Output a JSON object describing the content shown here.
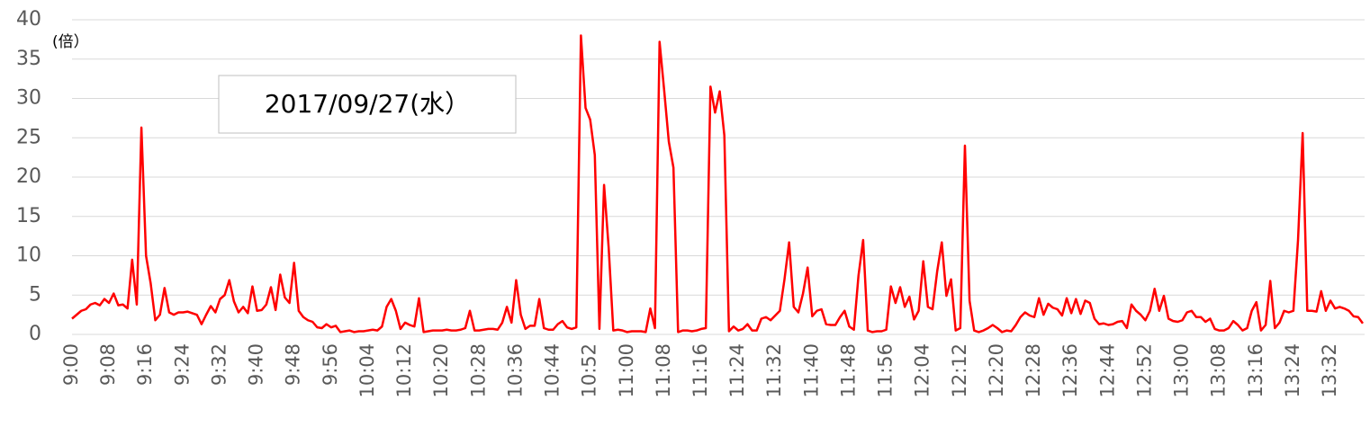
{
  "chart_data": {
    "type": "line",
    "unit_label": "(倍）",
    "annotation": "2017/09/27(水）",
    "categories": [
      "9:00",
      null,
      null,
      null,
      null,
      null,
      null,
      null,
      "9:08",
      null,
      null,
      null,
      null,
      null,
      null,
      null,
      "9:16",
      null,
      null,
      null,
      null,
      null,
      null,
      null,
      "9:24",
      null,
      null,
      null,
      null,
      null,
      null,
      null,
      "9:32",
      null,
      null,
      null,
      null,
      null,
      null,
      null,
      "9:40",
      null,
      null,
      null,
      null,
      null,
      null,
      null,
      "9:48",
      null,
      null,
      null,
      null,
      null,
      null,
      null,
      "9:56",
      null,
      null,
      null,
      null,
      null,
      null,
      null,
      "10:04",
      null,
      null,
      null,
      null,
      null,
      null,
      null,
      "10:12",
      null,
      null,
      null,
      null,
      null,
      null,
      null,
      "10:20",
      null,
      null,
      null,
      null,
      null,
      null,
      null,
      "10:28",
      null,
      null,
      null,
      null,
      null,
      null,
      null,
      "10:36",
      null,
      null,
      null,
      null,
      null,
      null,
      null,
      "10:44",
      null,
      null,
      null,
      null,
      null,
      null,
      null,
      "10:52",
      null,
      null,
      null,
      null,
      null,
      null,
      null,
      "11:00",
      null,
      null,
      null,
      null,
      null,
      null,
      null,
      "11:08",
      null,
      null,
      null,
      null,
      null,
      null,
      null,
      "11:16",
      null,
      null,
      null,
      null,
      null,
      null,
      null,
      "11:24",
      null,
      null,
      null,
      null,
      null,
      null,
      null,
      "11:32",
      null,
      null,
      null,
      null,
      null,
      null,
      null,
      "11:40",
      null,
      null,
      null,
      null,
      null,
      null,
      null,
      "11:48",
      null,
      null,
      null,
      null,
      null,
      null,
      null,
      "11:56",
      null,
      null,
      null,
      null,
      null,
      null,
      null,
      "12:04",
      null,
      null,
      null,
      null,
      null,
      null,
      null,
      "12:12",
      null,
      null,
      null,
      null,
      null,
      null,
      null,
      "12:20",
      null,
      null,
      null,
      null,
      null,
      null,
      null,
      "12:28",
      null,
      null,
      null,
      null,
      null,
      null,
      null,
      "12:36",
      null,
      null,
      null,
      null,
      null,
      null,
      null,
      "12:44",
      null,
      null,
      null,
      null,
      null,
      null,
      null,
      "12:52",
      null,
      null,
      null,
      null,
      null,
      null,
      null,
      "13:00",
      null,
      null,
      null,
      null,
      null,
      null,
      null,
      "13:08",
      null,
      null,
      null,
      null,
      null,
      null,
      null,
      "13:16",
      null,
      null,
      null,
      null,
      null,
      null,
      null,
      "13:24",
      null,
      null,
      null,
      null,
      null,
      null,
      null,
      "13:32",
      null,
      null,
      null,
      null,
      null,
      null,
      null
    ],
    "values": [
      2,
      2.5,
      3,
      3.2,
      3.8,
      4,
      3.7,
      4.5,
      4,
      5.2,
      3.7,
      3.8,
      3.3,
      9.5,
      3.8,
      26.3,
      10,
      6.5,
      1.8,
      2.5,
      5.9,
      2.8,
      2.5,
      2.8,
      2.8,
      2.9,
      2.7,
      2.5,
      1.3,
      2.5,
      3.6,
      2.8,
      4.5,
      5,
      6.9,
      4.2,
      2.8,
      3.5,
      2.7,
      6.1,
      3,
      3.1,
      3.8,
      6,
      3.1,
      7.6,
      4.7,
      4,
      9.1,
      3,
      2.2,
      1.8,
      1.6,
      0.9,
      0.8,
      1.3,
      0.9,
      1.1,
      0.3,
      0.4,
      0.5,
      0.3,
      0.4,
      0.4,
      0.5,
      0.6,
      0.5,
      1,
      3.5,
      4.5,
      3,
      0.7,
      1.5,
      1.2,
      1,
      4.6,
      0.3,
      0.4,
      0.5,
      0.5,
      0.5,
      0.6,
      0.5,
      0.5,
      0.6,
      0.8,
      3,
      0.5,
      0.5,
      0.6,
      0.7,
      0.7,
      0.6,
      1.5,
      3.5,
      1.5,
      6.9,
      2.5,
      0.7,
      1.1,
      1.1,
      4.5,
      0.8,
      0.6,
      0.6,
      1.3,
      1.7,
      0.9,
      0.7,
      0.9,
      38,
      28.8,
      27.3,
      22.8,
      0.7,
      19,
      11,
      0.5,
      0.6,
      0.5,
      0.3,
      0.4,
      0.4,
      0.4,
      0.3,
      3.3,
      0.8,
      37.2,
      31,
      24.5,
      21.2,
      0.3,
      0.5,
      0.5,
      0.4,
      0.5,
      0.7,
      0.8,
      31.5,
      28.2,
      30.9,
      25.3,
      0.4,
      1,
      0.5,
      0.7,
      1.3,
      0.5,
      0.5,
      2,
      2.2,
      1.8,
      2.4,
      3,
      7,
      11.7,
      3.5,
      2.8,
      5.2,
      8.5,
      2.3,
      3,
      3.2,
      1.3,
      1.2,
      1.2,
      2.2,
      3,
      1,
      0.6,
      7.5,
      12,
      0.5,
      0.3,
      0.4,
      0.4,
      0.6,
      6.1,
      4,
      6,
      3.5,
      4.8,
      1.9,
      3,
      9.3,
      3.5,
      3.2,
      8,
      11.7,
      4.9,
      7,
      0.5,
      0.8,
      24,
      4.3,
      0.5,
      0.3,
      0.5,
      0.8,
      1.2,
      0.8,
      0.3,
      0.5,
      0.4,
      1.2,
      2.2,
      2.8,
      2.4,
      2.2,
      4.6,
      2.5,
      3.9,
      3.4,
      3.2,
      2.4,
      4.6,
      2.7,
      4.5,
      2.6,
      4.3,
      4,
      2,
      1.3,
      1.4,
      1.2,
      1.3,
      1.6,
      1.7,
      0.8,
      3.8,
      3,
      2.5,
      1.8,
      3,
      5.8,
      3,
      4.9,
      2,
      1.7,
      1.6,
      1.8,
      2.8,
      3,
      2.2,
      2.2,
      1.6,
      2,
      0.7,
      0.5,
      0.5,
      0.8,
      1.7,
      1.2,
      0.5,
      0.8,
      3,
      4.1,
      0.5,
      1.2,
      6.8,
      0.8,
      1.5,
      3,
      2.8,
      3,
      12,
      25.6,
      3,
      3,
      2.9,
      5.5,
      3,
      4.3,
      3.3,
      3.5,
      3.3,
      3,
      2.3,
      2.2,
      1.4
    ],
    "color": "#ff0000",
    "ylim": [
      0,
      40
    ],
    "yticks": [
      0,
      5,
      10,
      15,
      20,
      25,
      30,
      35,
      40
    ],
    "grid": true
  }
}
